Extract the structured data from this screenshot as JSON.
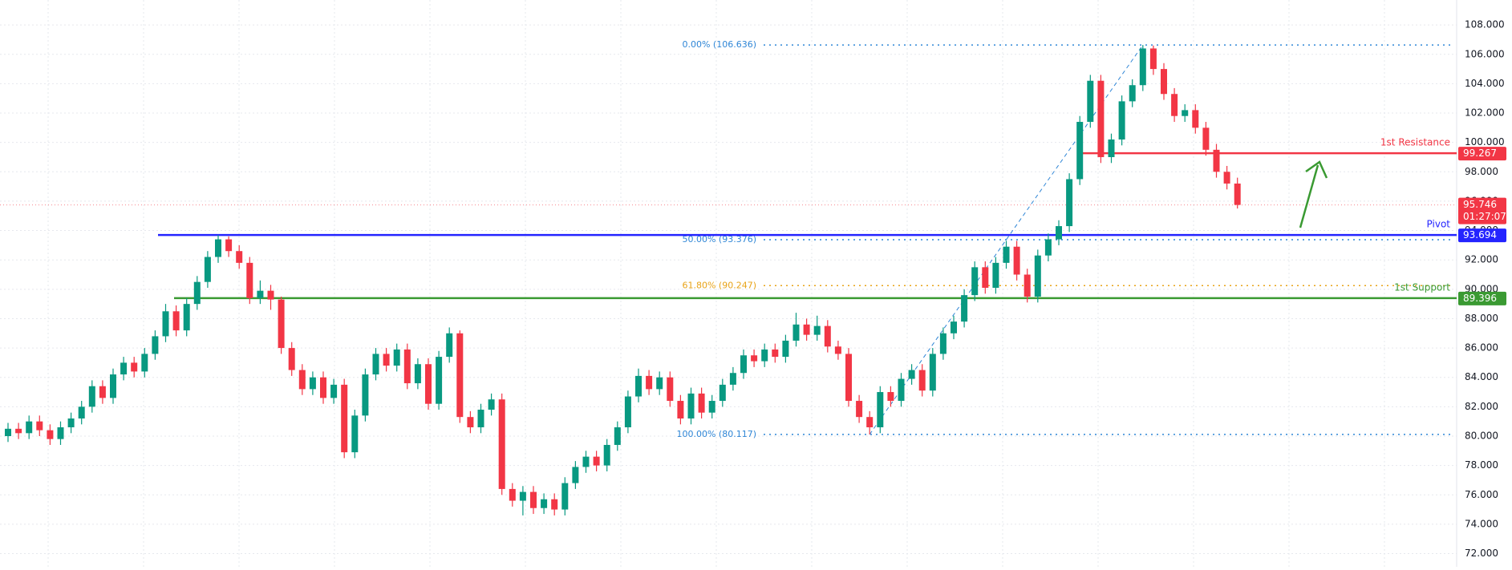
{
  "chart_data": {
    "type": "candlestick",
    "up_color": "#089981",
    "down_color": "#f23645",
    "ylim": [
      71.1,
      109.7
    ],
    "yticks": [
      {
        "value": 72,
        "label": "72.000"
      },
      {
        "value": 74,
        "label": "74.000"
      },
      {
        "value": 76,
        "label": "76.000"
      },
      {
        "value": 78,
        "label": "78.000"
      },
      {
        "value": 80,
        "label": "80.000"
      },
      {
        "value": 82,
        "label": "82.000"
      },
      {
        "value": 84,
        "label": "84.000"
      },
      {
        "value": 86,
        "label": "86.000"
      },
      {
        "value": 88,
        "label": "88.000"
      },
      {
        "value": 90,
        "label": "90.000"
      },
      {
        "value": 92,
        "label": "92.000"
      },
      {
        "value": 94,
        "label": "94.000"
      },
      {
        "value": 96,
        "label": "96.000"
      },
      {
        "value": 98,
        "label": "98.000"
      },
      {
        "value": 100,
        "label": "100.000"
      },
      {
        "value": 102,
        "label": "102.000"
      },
      {
        "value": 104,
        "label": "104.000"
      },
      {
        "value": 106,
        "label": "106.000"
      },
      {
        "value": 108,
        "label": "108.000"
      }
    ],
    "grid": true,
    "ohlc": [
      [
        80.0,
        80.9,
        79.6,
        80.5
      ],
      [
        80.5,
        80.9,
        79.8,
        80.2
      ],
      [
        80.2,
        81.4,
        79.8,
        81.0
      ],
      [
        81.0,
        81.4,
        80.0,
        80.4
      ],
      [
        80.4,
        80.8,
        79.4,
        79.8
      ],
      [
        79.8,
        81.0,
        79.4,
        80.6
      ],
      [
        80.6,
        81.6,
        80.2,
        81.2
      ],
      [
        81.2,
        82.4,
        80.8,
        82.0
      ],
      [
        82.0,
        83.8,
        81.6,
        83.4
      ],
      [
        83.4,
        83.8,
        82.2,
        82.6
      ],
      [
        82.6,
        84.6,
        82.2,
        84.2
      ],
      [
        84.2,
        85.4,
        83.8,
        85.0
      ],
      [
        85.0,
        85.4,
        84.0,
        84.4
      ],
      [
        84.4,
        86.0,
        84.0,
        85.6
      ],
      [
        85.6,
        87.2,
        85.2,
        86.8
      ],
      [
        86.8,
        89.0,
        86.4,
        88.5
      ],
      [
        88.5,
        88.9,
        86.8,
        87.2
      ],
      [
        87.2,
        89.4,
        86.8,
        89.0
      ],
      [
        89.0,
        90.9,
        88.6,
        90.5
      ],
      [
        90.5,
        92.6,
        90.1,
        92.2
      ],
      [
        92.2,
        93.694,
        91.8,
        93.4
      ],
      [
        93.4,
        93.6,
        92.2,
        92.6
      ],
      [
        92.6,
        93.0,
        91.4,
        91.8
      ],
      [
        91.8,
        92.2,
        89.0,
        89.4
      ],
      [
        89.4,
        90.6,
        89.0,
        89.9
      ],
      [
        89.9,
        90.3,
        88.6,
        89.3
      ],
      [
        89.3,
        89.5,
        85.6,
        86.0
      ],
      [
        86.0,
        86.4,
        84.1,
        84.5
      ],
      [
        84.5,
        84.9,
        82.8,
        83.2
      ],
      [
        83.2,
        84.4,
        82.8,
        84.0
      ],
      [
        84.0,
        84.4,
        82.2,
        82.6
      ],
      [
        82.6,
        83.9,
        82.2,
        83.5
      ],
      [
        83.5,
        83.9,
        78.5,
        78.9
      ],
      [
        78.9,
        81.8,
        78.5,
        81.4
      ],
      [
        81.4,
        84.6,
        81.0,
        84.2
      ],
      [
        84.2,
        86.0,
        83.8,
        85.6
      ],
      [
        85.6,
        86.0,
        84.4,
        84.8
      ],
      [
        84.8,
        86.3,
        84.4,
        85.9
      ],
      [
        85.9,
        86.3,
        83.2,
        83.6
      ],
      [
        83.6,
        85.3,
        83.2,
        84.9
      ],
      [
        84.9,
        85.3,
        81.8,
        82.2
      ],
      [
        82.2,
        85.8,
        81.8,
        85.4
      ],
      [
        85.4,
        87.4,
        85.0,
        87.0
      ],
      [
        87.0,
        87.2,
        80.9,
        81.3
      ],
      [
        81.3,
        81.7,
        80.2,
        80.6
      ],
      [
        80.6,
        82.2,
        80.2,
        81.8
      ],
      [
        81.8,
        82.9,
        81.4,
        82.5
      ],
      [
        82.5,
        82.9,
        76.0,
        76.4
      ],
      [
        76.4,
        76.8,
        75.2,
        75.6
      ],
      [
        75.6,
        76.6,
        74.6,
        76.2
      ],
      [
        76.2,
        76.6,
        74.7,
        75.1
      ],
      [
        75.1,
        76.1,
        74.7,
        75.7
      ],
      [
        75.7,
        76.1,
        74.6,
        75.0
      ],
      [
        75.0,
        77.2,
        74.6,
        76.8
      ],
      [
        76.8,
        78.3,
        76.4,
        77.9
      ],
      [
        77.9,
        79.0,
        77.5,
        78.6
      ],
      [
        78.6,
        79.0,
        77.6,
        78.0
      ],
      [
        78.0,
        79.8,
        77.6,
        79.4
      ],
      [
        79.4,
        81.0,
        79.0,
        80.6
      ],
      [
        80.6,
        83.1,
        80.2,
        82.7
      ],
      [
        82.7,
        84.6,
        82.3,
        84.1
      ],
      [
        84.1,
        84.5,
        82.8,
        83.2
      ],
      [
        83.2,
        84.4,
        82.8,
        84.0
      ],
      [
        84.0,
        84.4,
        82.0,
        82.4
      ],
      [
        82.4,
        82.8,
        80.8,
        81.2
      ],
      [
        81.2,
        83.3,
        80.8,
        82.9
      ],
      [
        82.9,
        83.3,
        81.2,
        81.6
      ],
      [
        81.6,
        82.8,
        81.2,
        82.4
      ],
      [
        82.4,
        83.9,
        82.0,
        83.5
      ],
      [
        83.5,
        84.7,
        83.1,
        84.3
      ],
      [
        84.3,
        85.9,
        83.9,
        85.5
      ],
      [
        85.5,
        85.9,
        84.7,
        85.1
      ],
      [
        85.1,
        86.3,
        84.7,
        85.9
      ],
      [
        85.9,
        86.3,
        85.0,
        85.4
      ],
      [
        85.4,
        86.9,
        85.0,
        86.5
      ],
      [
        86.5,
        88.4,
        86.1,
        87.6
      ],
      [
        87.6,
        88.0,
        86.5,
        86.9
      ],
      [
        86.9,
        88.2,
        86.5,
        87.5
      ],
      [
        87.5,
        87.9,
        85.7,
        86.1
      ],
      [
        86.1,
        86.5,
        85.2,
        85.6
      ],
      [
        85.6,
        86.0,
        82.0,
        82.4
      ],
      [
        82.4,
        82.8,
        80.9,
        81.3
      ],
      [
        81.3,
        81.7,
        80.117,
        80.6
      ],
      [
        80.6,
        83.4,
        80.2,
        83.0
      ],
      [
        83.0,
        83.4,
        82.0,
        82.4
      ],
      [
        82.4,
        84.3,
        82.0,
        83.9
      ],
      [
        83.9,
        84.9,
        83.5,
        84.5
      ],
      [
        84.5,
        84.9,
        82.7,
        83.1
      ],
      [
        83.1,
        86.0,
        82.7,
        85.6
      ],
      [
        85.6,
        87.4,
        85.2,
        87.0
      ],
      [
        87.0,
        88.2,
        86.6,
        87.8
      ],
      [
        87.8,
        90.0,
        87.4,
        89.6
      ],
      [
        89.6,
        91.9,
        89.2,
        91.5
      ],
      [
        91.5,
        91.9,
        89.7,
        90.1
      ],
      [
        90.1,
        92.2,
        89.7,
        91.8
      ],
      [
        91.8,
        93.3,
        91.4,
        92.9
      ],
      [
        92.9,
        93.3,
        90.6,
        91.0
      ],
      [
        91.0,
        91.4,
        89.1,
        89.5
      ],
      [
        89.5,
        92.7,
        89.1,
        92.3
      ],
      [
        92.3,
        93.8,
        91.9,
        93.4
      ],
      [
        93.4,
        94.7,
        93.0,
        94.3
      ],
      [
        94.3,
        97.9,
        93.9,
        97.5
      ],
      [
        97.5,
        101.8,
        97.1,
        101.4
      ],
      [
        101.4,
        104.6,
        101.0,
        104.2
      ],
      [
        104.2,
        104.6,
        98.6,
        99.0
      ],
      [
        99.0,
        100.6,
        98.6,
        100.2
      ],
      [
        100.2,
        103.2,
        99.8,
        102.8
      ],
      [
        102.8,
        104.3,
        102.4,
        103.9
      ],
      [
        103.9,
        106.636,
        103.5,
        106.4
      ],
      [
        106.4,
        106.6,
        104.6,
        105.0
      ],
      [
        105.0,
        105.4,
        102.9,
        103.3
      ],
      [
        103.3,
        103.7,
        101.4,
        101.8
      ],
      [
        101.8,
        102.6,
        101.4,
        102.2
      ],
      [
        102.2,
        102.6,
        100.6,
        101.0
      ],
      [
        101.0,
        101.4,
        99.1,
        99.5
      ],
      [
        99.5,
        99.9,
        97.6,
        98.0
      ],
      [
        98.0,
        98.4,
        96.8,
        97.2
      ],
      [
        97.2,
        97.6,
        95.5,
        95.746
      ]
    ],
    "levels": [
      {
        "label": "1st Resistance",
        "value": 99.267,
        "color": "#f23645"
      },
      {
        "label": "Pivot",
        "value": 93.694,
        "color": "#2424ff"
      },
      {
        "label": "1st Support",
        "value": 89.396,
        "color": "#3a9a32"
      }
    ],
    "current_price": {
      "value": 95.746,
      "countdown": "01:27:07",
      "color": "#f23645"
    },
    "fib_levels": [
      {
        "label": "0.00% (106.636)",
        "value": 106.636,
        "color": "#2f86d6"
      },
      {
        "label": "50.00% (93.376)",
        "value": 93.376,
        "color": "#2f86d6"
      },
      {
        "label": "61.80% (90.247)",
        "value": 90.247,
        "color": "#e8a317"
      },
      {
        "label": "100.00% (80.117)",
        "value": 80.117,
        "color": "#2f86d6"
      }
    ]
  }
}
